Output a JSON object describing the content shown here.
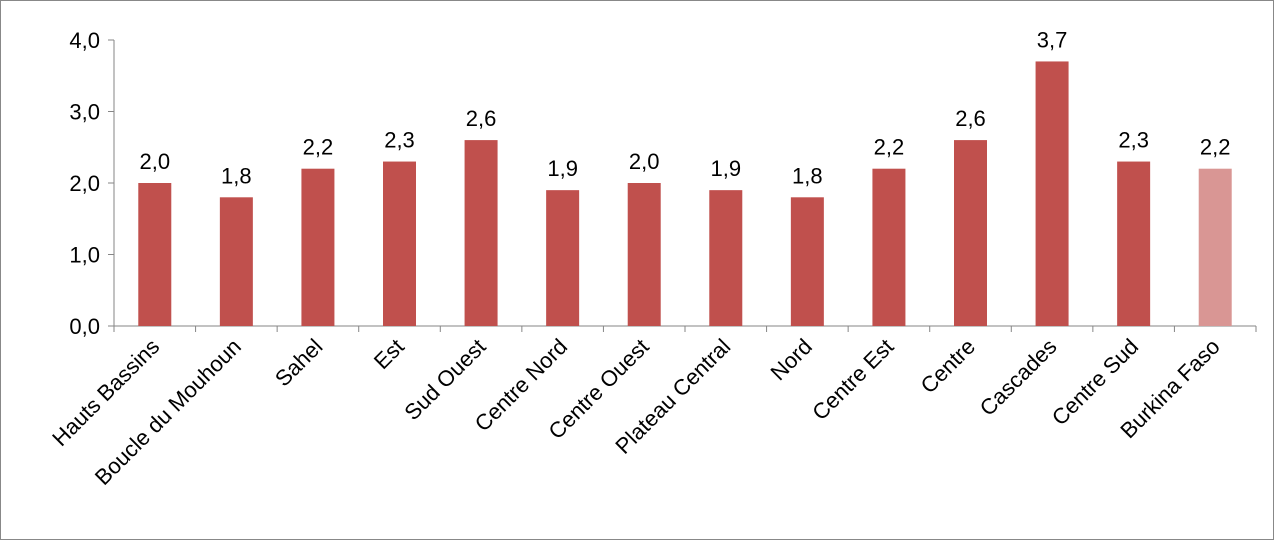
{
  "chart_data": {
    "type": "bar",
    "title": "",
    "xlabel": "",
    "ylabel": "",
    "ylim": [
      0,
      4
    ],
    "yticks": [
      "0,0",
      "1,0",
      "2,0",
      "3,0",
      "4,0"
    ],
    "categories": [
      "Hauts Bassins",
      "Boucle du Mouhoun",
      "Sahel",
      "Est",
      "Sud Ouest",
      "Centre Nord",
      "Centre Ouest",
      "Plateau Central",
      "Nord",
      "Centre Est",
      "Centre",
      "Cascades",
      "Centre Sud",
      "Burkina Faso"
    ],
    "values": [
      2.0,
      1.8,
      2.2,
      2.3,
      2.6,
      1.9,
      2.0,
      1.9,
      1.8,
      2.2,
      2.6,
      3.7,
      2.3,
      2.2
    ],
    "data_labels": [
      "2,0",
      "1,8",
      "2,2",
      "2,3",
      "2,6",
      "1,9",
      "2,0",
      "1,9",
      "1,8",
      "2,2",
      "2,6",
      "3,7",
      "2,3",
      "2,2"
    ],
    "grid": false,
    "legend": "none",
    "colors": {
      "bar": "#c0504d",
      "highlight": "#d99694"
    },
    "highlight_category": "Burkina Faso"
  }
}
